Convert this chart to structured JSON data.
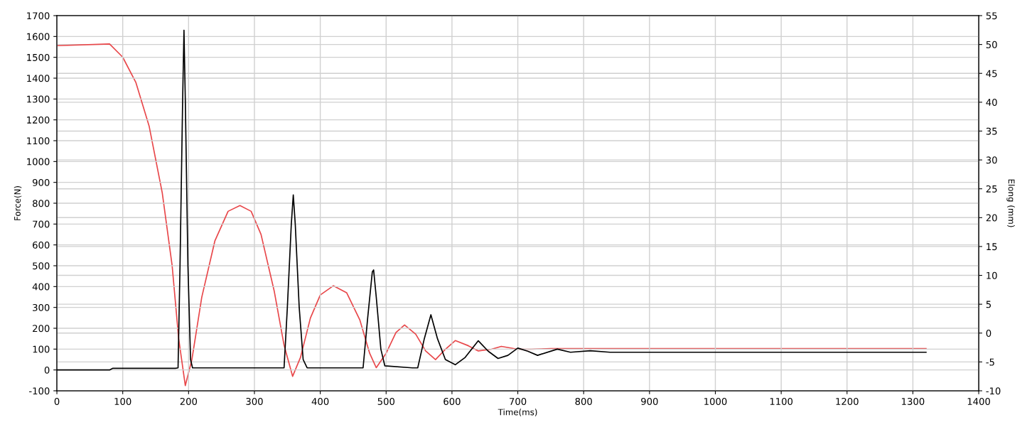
{
  "chart_data": {
    "type": "line",
    "xlabel": "Time(ms)",
    "ylabel": "Force(N)",
    "y2label": "Elong (mm)",
    "xlim": [
      0,
      1400
    ],
    "xticks": [
      0,
      100,
      200,
      300,
      400,
      500,
      600,
      700,
      800,
      900,
      1000,
      1100,
      1200,
      1300,
      1400
    ],
    "ylim": [
      -100,
      1700
    ],
    "yticks": [
      -100,
      0,
      100,
      200,
      300,
      400,
      500,
      600,
      700,
      800,
      900,
      1000,
      1100,
      1200,
      1300,
      1400,
      1500,
      1600,
      1700
    ],
    "y2lim": [
      -10,
      55
    ],
    "y2ticks": [
      -10,
      -5,
      0,
      5,
      10,
      15,
      20,
      25,
      30,
      35,
      40,
      45,
      50,
      55
    ],
    "grid": true,
    "marker": "none",
    "line_style": "solid",
    "series": [
      {
        "color": "#e8474a",
        "axis": "y2",
        "x": [
          0,
          80,
          100,
          120,
          140,
          160,
          175,
          185,
          195,
          205,
          220,
          240,
          260,
          278,
          295,
          310,
          330,
          345,
          358,
          370,
          385,
          400,
          420,
          440,
          460,
          475,
          485,
          500,
          515,
          528,
          545,
          560,
          575,
          590,
          605,
          625,
          640,
          660,
          675,
          700,
          720,
          750,
          900,
          1100,
          1320
        ],
        "values": [
          49.8,
          50.1,
          47.8,
          43.4,
          35.9,
          24.3,
          11.7,
          -1.0,
          -9.1,
          -4.6,
          6.2,
          16.0,
          21.1,
          22.1,
          21.1,
          17.1,
          7.3,
          -2.1,
          -7.5,
          -4.2,
          2.6,
          6.6,
          8.2,
          7.0,
          2.3,
          -3.5,
          -6.0,
          -3.5,
          0.1,
          1.4,
          -0.2,
          -3.1,
          -4.6,
          -2.8,
          -1.3,
          -2.2,
          -3.1,
          -2.8,
          -2.3,
          -2.8,
          -2.8,
          -2.7,
          -2.7,
          -2.7,
          -2.7
        ]
      },
      {
        "color": "#000000",
        "axis": "y",
        "x": [
          0,
          80,
          85,
          180,
          184,
          187,
          191,
          193,
          195,
          199,
          203,
          206,
          340,
          345,
          350,
          356,
          359,
          362,
          368,
          374,
          380,
          460,
          465,
          472,
          479,
          481,
          485,
          492,
          498,
          540,
          548,
          558,
          568,
          578,
          590,
          605,
          620,
          640,
          655,
          670,
          685,
          700,
          715,
          730,
          760,
          780,
          810,
          840,
          900,
          1320
        ],
        "values": [
          0,
          0,
          8,
          8,
          10,
          500,
          1300,
          1630,
          1300,
          500,
          50,
          10,
          10,
          10,
          300,
          700,
          840,
          700,
          300,
          50,
          10,
          10,
          10,
          250,
          470,
          480,
          350,
          100,
          20,
          10,
          10,
          150,
          265,
          150,
          50,
          25,
          60,
          140,
          90,
          55,
          70,
          105,
          90,
          70,
          100,
          85,
          92,
          85,
          85,
          85
        ]
      }
    ]
  }
}
